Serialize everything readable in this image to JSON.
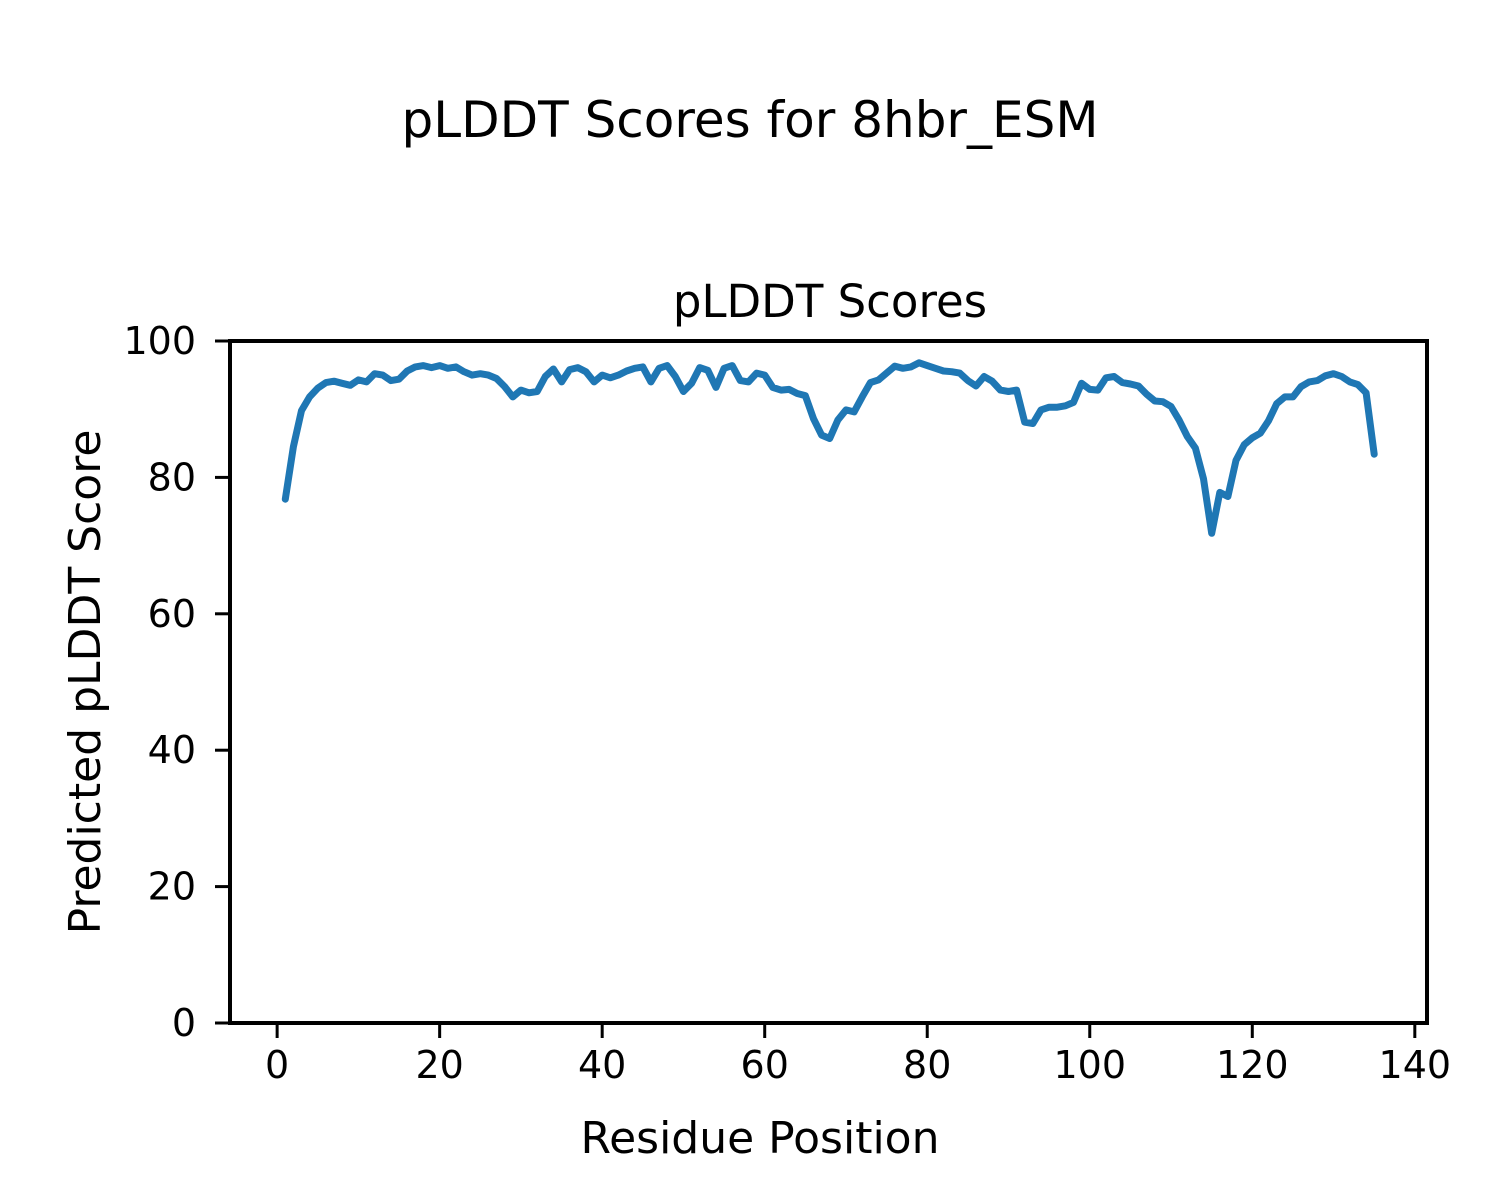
{
  "figure": {
    "suptitle": "pLDDT Scores for 8hbr_ESM"
  },
  "chart_data": {
    "type": "line",
    "title": "pLDDT Scores",
    "xlabel": "Residue Position",
    "ylabel": "Predicted pLDDT Score",
    "x_ticks": [
      0,
      20,
      40,
      60,
      80,
      100,
      120,
      140
    ],
    "y_ticks": [
      0,
      20,
      40,
      60,
      80,
      100
    ],
    "xlim": [
      -5.8,
      141.5
    ],
    "ylim": [
      0,
      100
    ],
    "grid": false,
    "line_color": "#1f77b4",
    "series": [
      {
        "name": "pLDDT",
        "x_start": 1,
        "x_step": 1,
        "values": [
          76.8,
          84.5,
          89.8,
          91.8,
          93.1,
          93.9,
          94.1,
          93.8,
          93.5,
          94.3,
          94.0,
          95.2,
          95.0,
          94.2,
          94.4,
          95.6,
          96.2,
          96.4,
          96.1,
          96.4,
          96.0,
          96.2,
          95.5,
          95.0,
          95.2,
          95.0,
          94.5,
          93.3,
          91.8,
          92.8,
          92.4,
          92.6,
          94.8,
          95.9,
          94.0,
          95.8,
          96.1,
          95.5,
          94.0,
          95.0,
          94.6,
          95.0,
          95.6,
          96.0,
          96.2,
          94.0,
          96.0,
          96.4,
          94.8,
          92.6,
          93.8,
          96.1,
          95.7,
          93.2,
          96.0,
          96.4,
          94.2,
          94.0,
          95.3,
          95.0,
          93.2,
          92.8,
          92.9,
          92.3,
          92.0,
          88.6,
          86.2,
          85.7,
          88.4,
          89.9,
          89.6,
          91.8,
          93.9,
          94.3,
          95.3,
          96.3,
          96.0,
          96.2,
          96.8,
          96.4,
          96.0,
          95.6,
          95.5,
          95.3,
          94.2,
          93.4,
          94.8,
          94.1,
          92.8,
          92.6,
          92.8,
          88.1,
          87.9,
          89.9,
          90.3,
          90.3,
          90.5,
          91.0,
          93.8,
          92.9,
          92.8,
          94.6,
          94.8,
          93.9,
          93.7,
          93.4,
          92.2,
          91.2,
          91.1,
          90.4,
          88.4,
          86.0,
          84.3,
          79.8,
          71.8,
          77.8,
          77.2,
          82.5,
          84.8,
          85.8,
          86.5,
          88.3,
          90.8,
          91.8,
          91.8,
          93.3,
          94.0,
          94.2,
          94.9,
          95.2,
          94.8,
          94.0,
          93.6,
          92.4,
          83.4
        ]
      }
    ]
  }
}
